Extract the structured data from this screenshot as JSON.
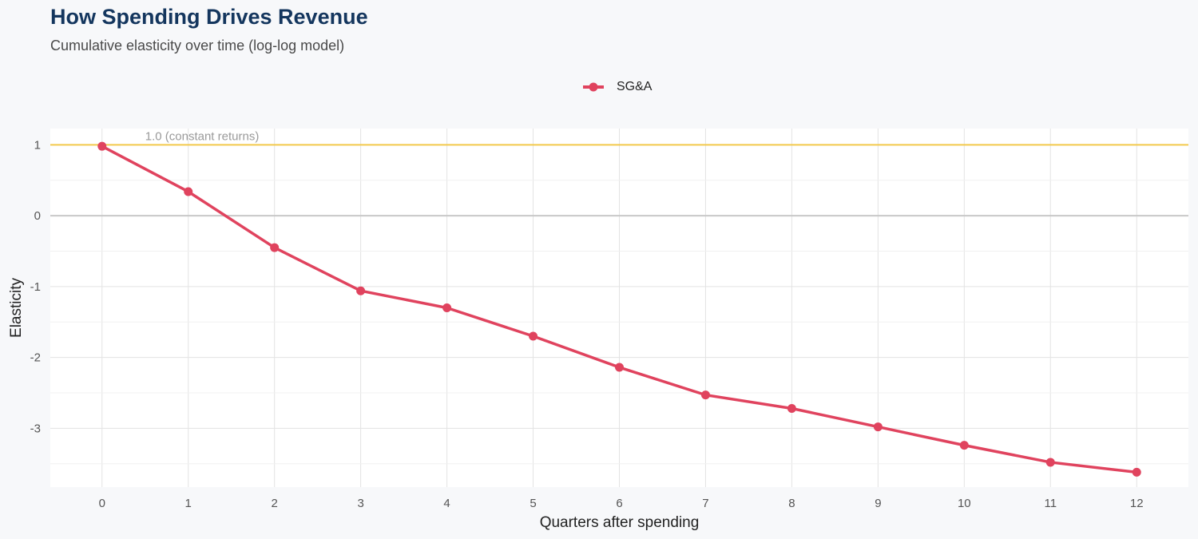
{
  "chart_data": {
    "type": "line",
    "title": "How Spending Drives Revenue",
    "subtitle": "Cumulative elasticity over time (log-log model)",
    "xlabel": "Quarters after spending",
    "ylabel": "Elasticity",
    "x": [
      0,
      1,
      2,
      3,
      4,
      5,
      6,
      7,
      8,
      9,
      10,
      11,
      12
    ],
    "x_ticks": [
      "0",
      "1",
      "2",
      "3",
      "4",
      "5",
      "6",
      "7",
      "8",
      "9",
      "10",
      "11",
      "12"
    ],
    "y_ticks": [
      "1",
      "0",
      "-1",
      "-2",
      "-3"
    ],
    "xlim": [
      -0.6,
      12.6
    ],
    "ylim": [
      -3.83,
      1.23
    ],
    "series": [
      {
        "name": "SG&A",
        "color": "#e0435e",
        "values": [
          0.98,
          0.34,
          -0.45,
          -1.06,
          -1.3,
          -1.7,
          -2.14,
          -2.53,
          -2.72,
          -2.98,
          -3.24,
          -3.48,
          -3.62
        ]
      }
    ],
    "reference_lines": [
      {
        "y": 1.0,
        "label": "1.0 (constant returns)",
        "color": "#f2c94c"
      },
      {
        "y": 0,
        "label": "",
        "color": "#c8c8c8"
      }
    ],
    "legend_position": "top-center",
    "grid": true
  }
}
